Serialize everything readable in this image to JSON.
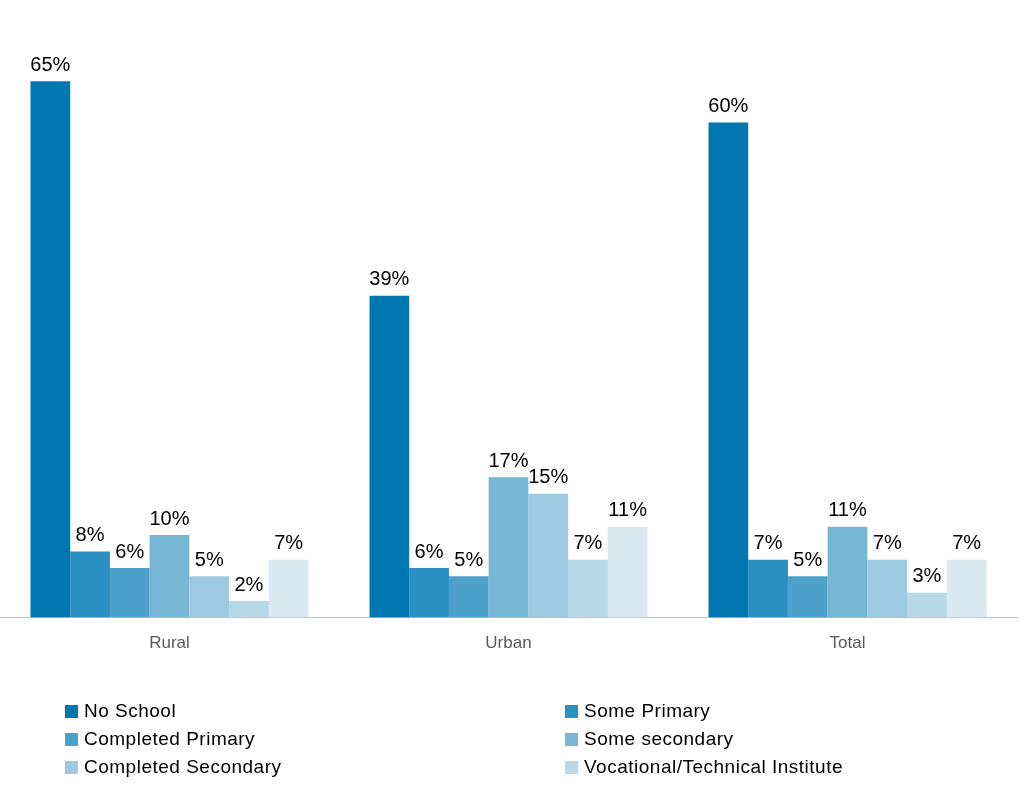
{
  "chart_data": {
    "type": "bar",
    "categories": [
      "Rural",
      "Urban",
      "Total"
    ],
    "series": [
      {
        "name": "No School",
        "color": "#0077b0",
        "values": [
          65,
          39,
          60
        ],
        "value_labels": [
          "65%",
          "39%",
          "60%"
        ]
      },
      {
        "name": "Some Primary",
        "color": "#2b8fc1",
        "values": [
          8,
          6,
          7
        ],
        "value_labels": [
          "8%",
          "6%",
          "7%"
        ]
      },
      {
        "name": "Completed Primary",
        "color": "#4ba1c9",
        "values": [
          6,
          5,
          5
        ],
        "value_labels": [
          "6%",
          "5%",
          "5%"
        ]
      },
      {
        "name": "Some secondary",
        "color": "#78b6d6",
        "values": [
          10,
          17,
          11
        ],
        "value_labels": [
          "10%",
          "17%",
          "11%"
        ]
      },
      {
        "name": "Completed Secondary",
        "color": "#9ecae1",
        "values": [
          5,
          15,
          7
        ],
        "value_labels": [
          "5%",
          "15%",
          "7%"
        ]
      },
      {
        "name": "Vocational/Technical Institute",
        "color": "#b7d9e9",
        "values": [
          2,
          7,
          3
        ],
        "value_labels": [
          "2%",
          "7%",
          "3%"
        ]
      },
      {
        "color": "#d9eaf3",
        "values": [
          7,
          11,
          7
        ],
        "value_labels": [
          "7%",
          "11%",
          "7%"
        ]
      }
    ],
    "legend": "bottom",
    "grid": false
  }
}
